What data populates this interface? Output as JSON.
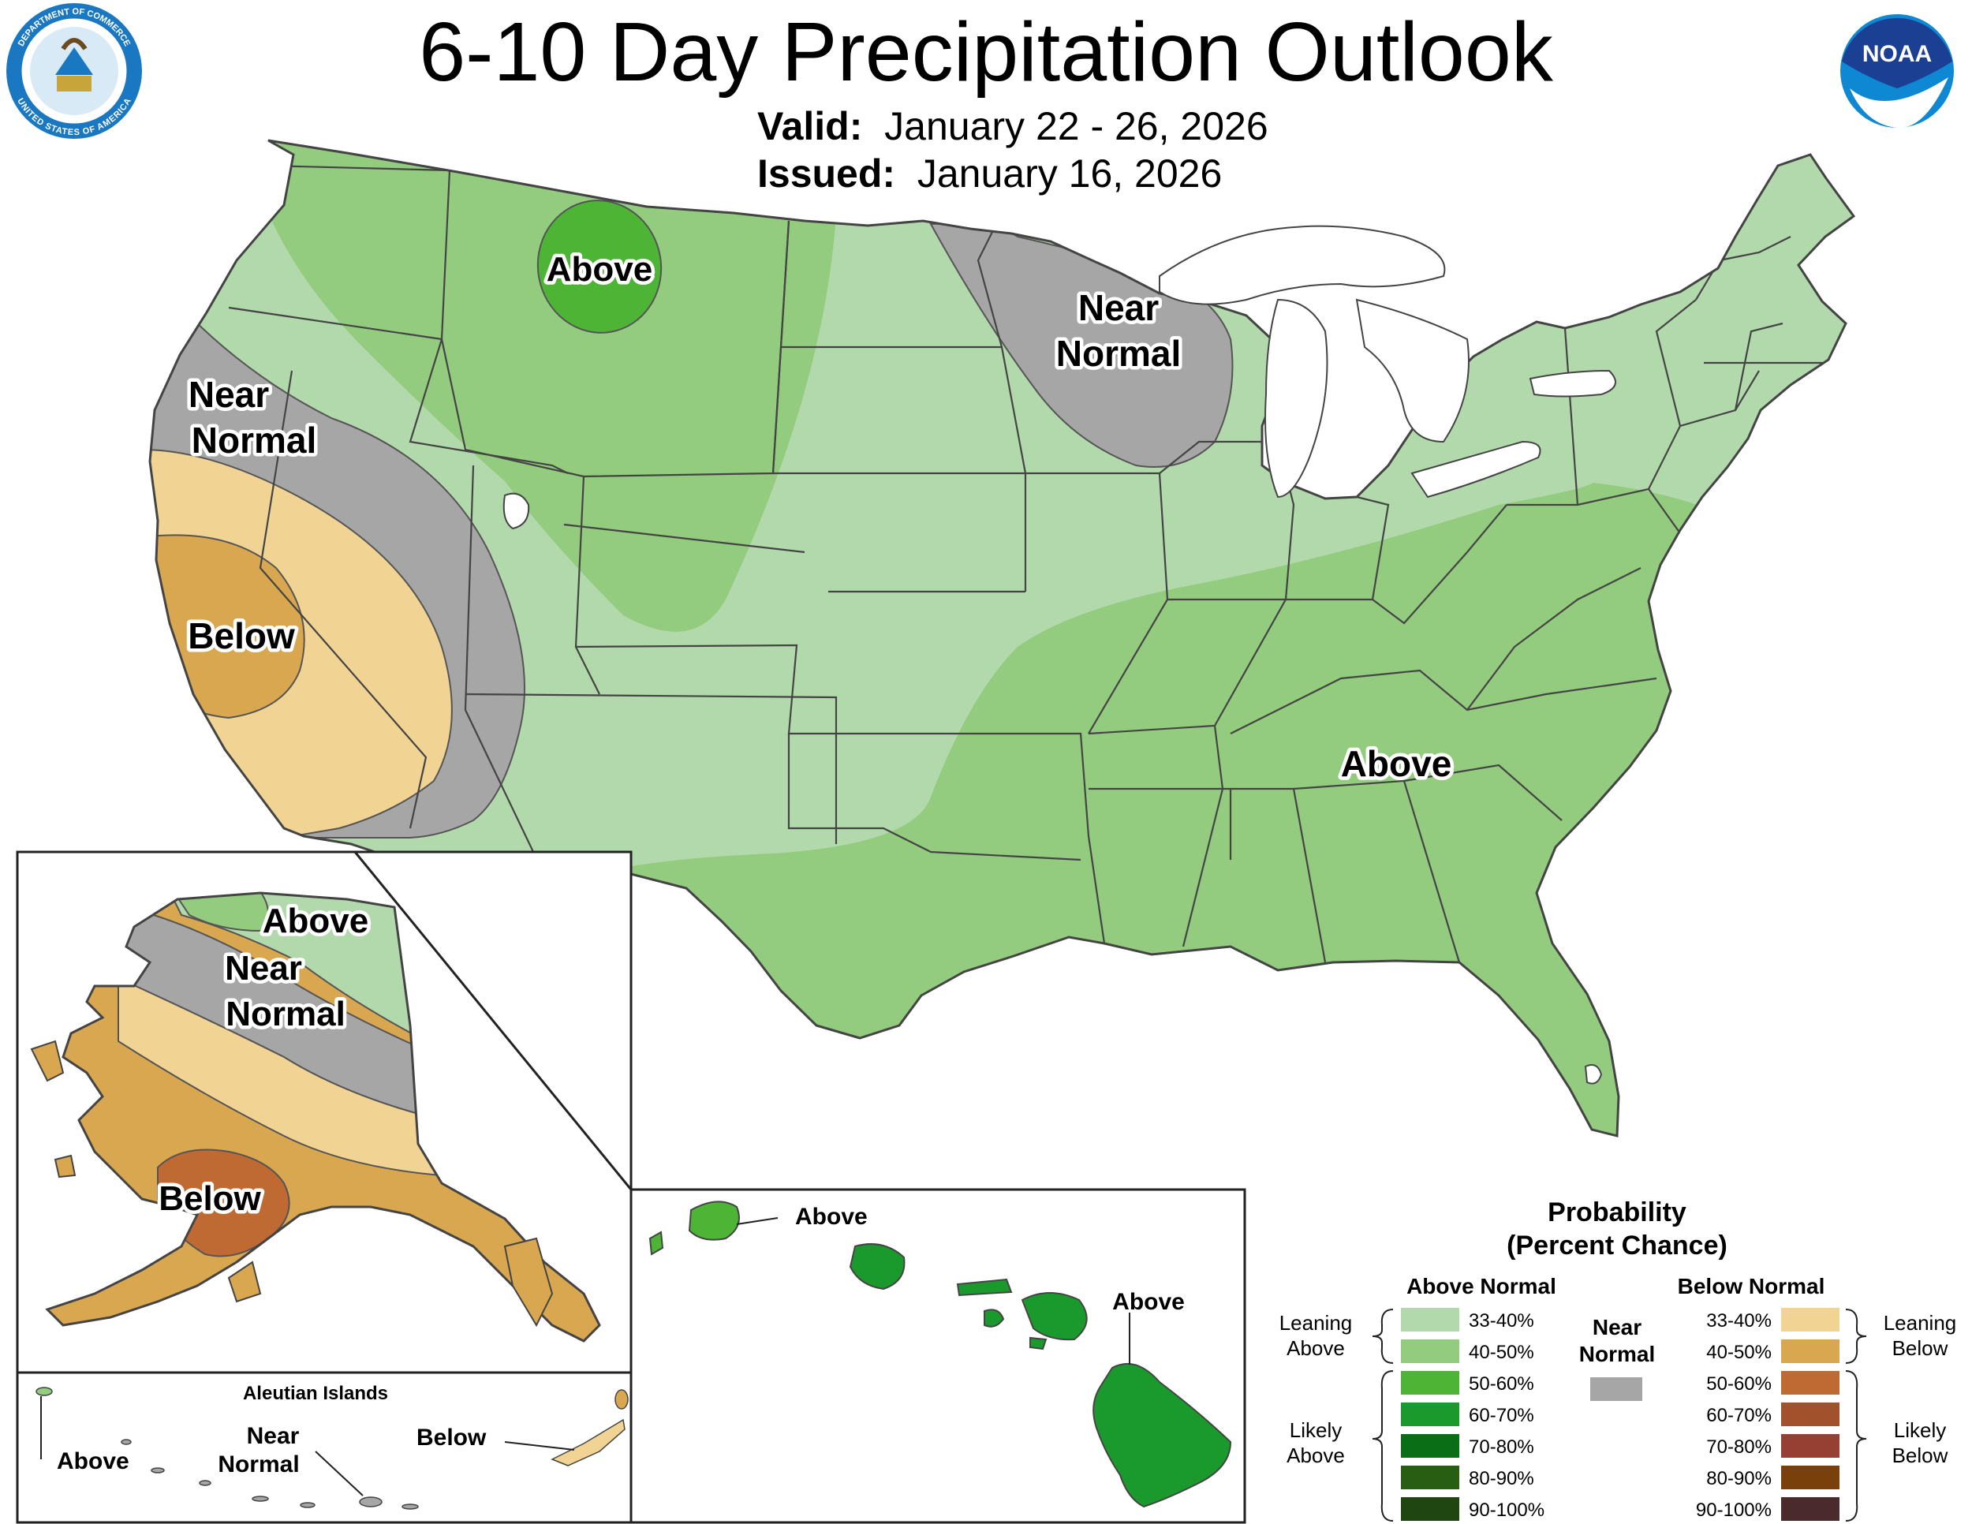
{
  "header": {
    "title": "6-10 Day Precipitation Outlook",
    "valid_label": "Valid:",
    "valid_dates": "January 22 - 26, 2026",
    "issued_label": "Issued:",
    "issued_date": "January 16, 2026",
    "noaa_logo_text": "NOAA",
    "commerce_seal_top": "DEPARTMENT OF COMMERCE",
    "commerce_seal_bottom": "UNITED STATES OF AMERICA"
  },
  "colors": {
    "leaning_above": "#b2d9ab",
    "above_40_50": "#93cc7e",
    "above_50_60": "#4db436",
    "above_60_70": "#1a9a2c",
    "above_70_80": "#0a6e17",
    "above_80_90": "#285e14",
    "above_90_100": "#1f4510",
    "near_normal": "#a6a6a6",
    "below_33_40": "#f1d493",
    "below_40_50": "#d9a74f",
    "below_50_60": "#c06a33",
    "below_60_70": "#a2512d",
    "below_70_80": "#963f33",
    "below_80_90": "#7a400c",
    "below_90_100": "#4a2a2c"
  },
  "conus_labels": {
    "above_montana": "Above",
    "near_normal_minnesota": [
      "Near",
      "Normal"
    ],
    "near_normal_california": [
      "Near",
      "Normal"
    ],
    "below_california": "Below",
    "above_southeast": "Above"
  },
  "alaska_labels": {
    "above": "Above",
    "near_normal": [
      "Near",
      "Normal"
    ],
    "below": "Below"
  },
  "aleutian": {
    "title": "Aleutian Islands",
    "above": "Above",
    "near_normal": [
      "Near",
      "Normal"
    ],
    "below": "Below"
  },
  "hawaii_labels": {
    "above_kauai": "Above",
    "above_big_island": "Above"
  },
  "legend": {
    "title_line1": "Probability",
    "title_line2": "(Percent Chance)",
    "above_header": "Above Normal",
    "below_header": "Below Normal",
    "near_label": [
      "Near",
      "Normal"
    ],
    "above_ranges": [
      "33-40%",
      "40-50%",
      "50-60%",
      "60-70%",
      "70-80%",
      "80-90%",
      "90-100%"
    ],
    "below_ranges": [
      "33-40%",
      "40-50%",
      "50-60%",
      "60-70%",
      "70-80%",
      "80-90%",
      "90-100%"
    ],
    "leaning_above": [
      "Leaning",
      "Above"
    ],
    "likely_above": [
      "Likely",
      "Above"
    ],
    "leaning_below": [
      "Leaning",
      "Below"
    ],
    "likely_below": [
      "Likely",
      "Below"
    ]
  }
}
